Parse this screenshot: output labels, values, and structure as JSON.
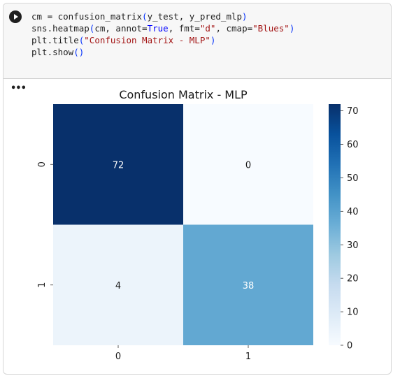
{
  "cell": {
    "run_icon": "play-circle-icon",
    "code_lines": [
      [
        {
          "t": "cm = confusion_matrix"
        },
        {
          "t": "(",
          "c": "par"
        },
        {
          "t": "y_test, y_pred_mlp"
        },
        {
          "t": ")",
          "c": "par"
        }
      ],
      [
        {
          "t": "sns.heatmap"
        },
        {
          "t": "(",
          "c": "par"
        },
        {
          "t": "cm, annot="
        },
        {
          "t": "True",
          "c": "kw"
        },
        {
          "t": ", fmt="
        },
        {
          "t": "\"d\"",
          "c": "str"
        },
        {
          "t": ", cmap="
        },
        {
          "t": "\"Blues\"",
          "c": "str"
        },
        {
          "t": ")",
          "c": "par"
        }
      ],
      [
        {
          "t": "plt.title"
        },
        {
          "t": "(",
          "c": "par"
        },
        {
          "t": "\"Confusion Matrix - MLP\"",
          "c": "str"
        },
        {
          "t": ")",
          "c": "par"
        }
      ],
      [
        {
          "t": "plt.show"
        },
        {
          "t": "()",
          "c": "par"
        }
      ]
    ]
  },
  "output": {
    "menu_label": "•••"
  },
  "chart_data": {
    "type": "heatmap",
    "title": "Confusion Matrix - MLP",
    "x_tick_labels": [
      "0",
      "1"
    ],
    "y_tick_labels": [
      "0",
      "1"
    ],
    "values": [
      [
        72,
        0
      ],
      [
        4,
        38
      ]
    ],
    "colormap": "Blues",
    "colorbar": {
      "min": 0,
      "max": 72,
      "ticks": [
        0,
        10,
        20,
        30,
        40,
        50,
        60,
        70
      ]
    },
    "colors": {
      "low": "#f7fbff",
      "high": "#08306b"
    }
  }
}
